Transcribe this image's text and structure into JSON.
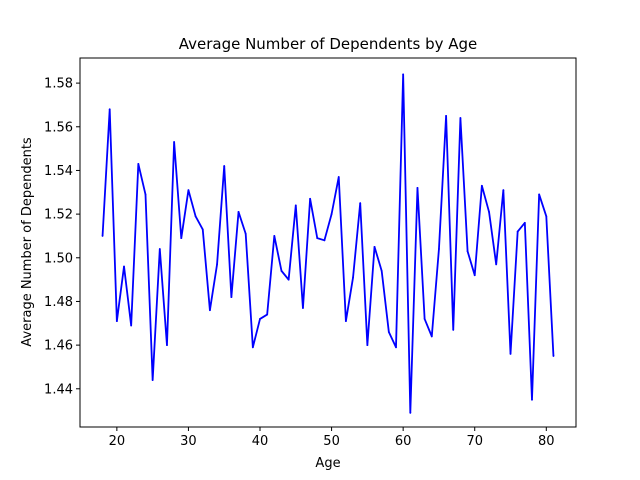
{
  "chart_data": {
    "type": "line",
    "title": "Average Number of Dependents by Age",
    "xlabel": "Age",
    "ylabel": "Average Number of Dependents",
    "xlim": [
      14.85,
      84.15
    ],
    "ylim": [
      1.4225,
      1.5915
    ],
    "xticks": [
      20,
      30,
      40,
      50,
      60,
      70,
      80
    ],
    "yticks": [
      1.44,
      1.46,
      1.48,
      1.5,
      1.52,
      1.54,
      1.56,
      1.58
    ],
    "ytick_labels": [
      "1.44",
      "1.46",
      "1.48",
      "1.50",
      "1.52",
      "1.54",
      "1.56",
      "1.58"
    ],
    "grid": false,
    "series": [
      {
        "color": "#0000ff",
        "x": [
          18,
          19,
          20,
          21,
          22,
          23,
          24,
          25,
          26,
          27,
          28,
          29,
          30,
          31,
          32,
          33,
          34,
          35,
          36,
          37,
          38,
          39,
          40,
          41,
          42,
          43,
          44,
          45,
          46,
          47,
          48,
          49,
          50,
          51,
          52,
          53,
          54,
          55,
          56,
          57,
          58,
          59,
          60,
          61,
          62,
          63,
          64,
          65,
          66,
          67,
          68,
          69,
          70,
          71,
          72,
          73,
          74,
          75,
          76,
          77,
          78,
          79,
          80,
          81
        ],
        "values": [
          1.51,
          1.568,
          1.471,
          1.496,
          1.469,
          1.543,
          1.529,
          1.444,
          1.504,
          1.46,
          1.553,
          1.509,
          1.531,
          1.519,
          1.513,
          1.476,
          1.497,
          1.542,
          1.482,
          1.521,
          1.511,
          1.459,
          1.472,
          1.474,
          1.51,
          1.494,
          1.49,
          1.524,
          1.477,
          1.527,
          1.509,
          1.508,
          1.52,
          1.537,
          1.471,
          1.491,
          1.525,
          1.46,
          1.505,
          1.494,
          1.466,
          1.459,
          1.584,
          1.429,
          1.532,
          1.472,
          1.464,
          1.504,
          1.565,
          1.467,
          1.564,
          1.503,
          1.492,
          1.533,
          1.521,
          1.497,
          1.531,
          1.456,
          1.512,
          1.516,
          1.435,
          1.529,
          1.519,
          1.455
        ]
      }
    ]
  }
}
